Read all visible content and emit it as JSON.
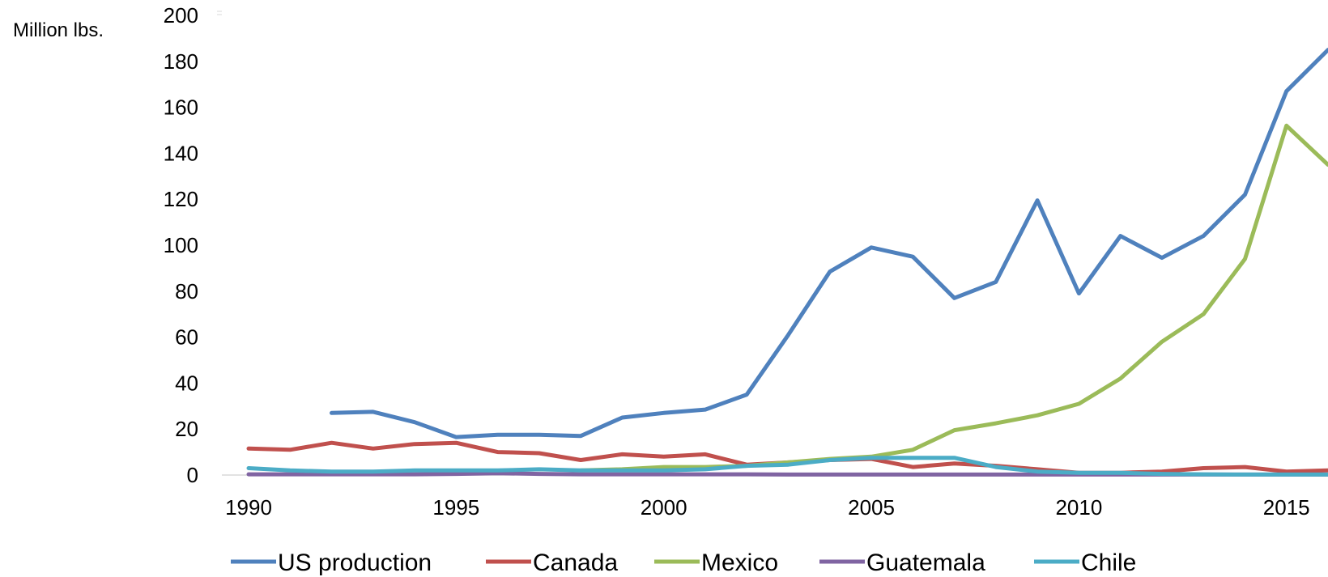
{
  "chart_data": {
    "type": "line",
    "ylabel": "Million lbs.",
    "xlabel": "",
    "title": "",
    "ylim": [
      0,
      200
    ],
    "yticks": [
      0,
      20,
      40,
      60,
      80,
      100,
      120,
      140,
      160,
      180,
      200
    ],
    "xlim": [
      1990,
      2016
    ],
    "xticks": [
      1990,
      1995,
      2000,
      2005,
      2010,
      2015
    ],
    "grid": false,
    "legend_position": "bottom",
    "x": [
      1990,
      1991,
      1992,
      1993,
      1994,
      1995,
      1996,
      1997,
      1998,
      1999,
      2000,
      2001,
      2002,
      2003,
      2004,
      2005,
      2006,
      2007,
      2008,
      2009,
      2010,
      2011,
      2012,
      2013,
      2014,
      2015,
      2016
    ],
    "series": [
      {
        "name": "US production",
        "color": "#4F81BD",
        "values": [
          null,
          null,
          27,
          27.5,
          23,
          16.5,
          17.5,
          17.5,
          17,
          25,
          27,
          28.5,
          35,
          61,
          88.5,
          99,
          95,
          77,
          84,
          119.5,
          79,
          104,
          94.5,
          104,
          122,
          167,
          185
        ]
      },
      {
        "name": "Canada",
        "color": "#C0504D",
        "values": [
          11.5,
          11,
          14,
          11.5,
          13.5,
          14,
          10,
          9.5,
          6.5,
          9,
          8,
          9,
          4.5,
          5.5,
          6.5,
          7,
          3.5,
          5,
          4,
          2.5,
          1,
          1,
          1.5,
          3,
          3.5,
          1.5,
          2
        ]
      },
      {
        "name": "Mexico",
        "color": "#9BBB59",
        "values": [
          null,
          null,
          null,
          null,
          null,
          null,
          null,
          null,
          2,
          2.5,
          3.5,
          3.5,
          4,
          5.5,
          7,
          8,
          11,
          19.5,
          22.5,
          26,
          31,
          42,
          58,
          70,
          94,
          152,
          135
        ]
      },
      {
        "name": "Guatemala",
        "color": "#8064A2",
        "values": [
          0.3,
          0.3,
          0.3,
          0.3,
          0.3,
          0.5,
          0.8,
          0.5,
          0.3,
          0.3,
          0.3,
          0.3,
          0.3,
          0.2,
          0.2,
          0.2,
          0.2,
          0.2,
          0.2,
          0.2,
          0.2,
          0.2,
          0.2,
          0.2,
          0.2,
          0.2,
          0.2
        ]
      },
      {
        "name": "Chile",
        "color": "#4BACC6",
        "values": [
          3,
          2,
          1.5,
          1.5,
          2,
          2,
          2,
          2.5,
          2,
          2,
          2,
          2.5,
          4,
          4.5,
          6.5,
          7.5,
          7.5,
          7.5,
          3.5,
          1.5,
          1,
          1,
          0.5,
          0.3,
          0.2,
          0.2,
          0.2
        ]
      }
    ]
  }
}
